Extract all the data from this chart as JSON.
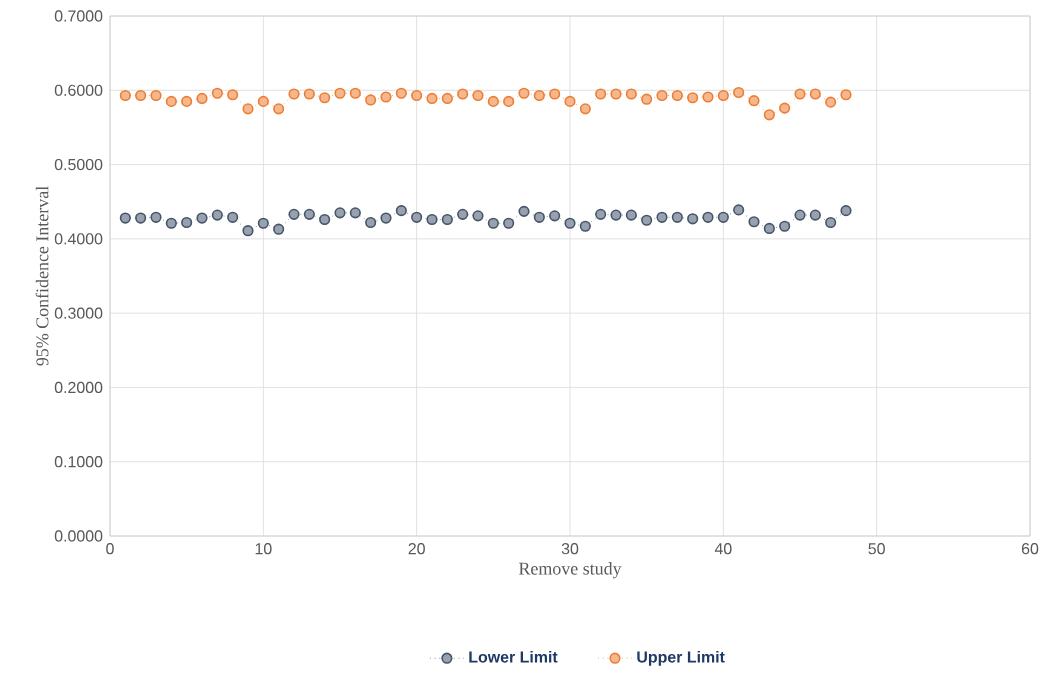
{
  "chart_data": {
    "type": "line",
    "xlabel": "Remove study",
    "ylabel": "95% Confidence Interval",
    "x": [
      1,
      2,
      3,
      4,
      5,
      6,
      7,
      8,
      9,
      10,
      11,
      12,
      13,
      14,
      15,
      16,
      17,
      18,
      19,
      20,
      21,
      22,
      23,
      24,
      25,
      26,
      27,
      28,
      29,
      30,
      31,
      32,
      33,
      34,
      35,
      36,
      37,
      38,
      39,
      40,
      41,
      42,
      43,
      44,
      45,
      46,
      47,
      48
    ],
    "series": [
      {
        "name": "Lower Limit",
        "color": "#44546a",
        "values": [
          0.428,
          0.428,
          0.429,
          0.421,
          0.422,
          0.428,
          0.432,
          0.429,
          0.411,
          0.421,
          0.413,
          0.433,
          0.433,
          0.426,
          0.435,
          0.435,
          0.422,
          0.428,
          0.438,
          0.429,
          0.426,
          0.426,
          0.433,
          0.431,
          0.421,
          0.421,
          0.437,
          0.429,
          0.431,
          0.421,
          0.417,
          0.433,
          0.432,
          0.432,
          0.425,
          0.429,
          0.429,
          0.427,
          0.429,
          0.429,
          0.439,
          0.423,
          0.414,
          0.417,
          0.432,
          0.432,
          0.422,
          0.438
        ]
      },
      {
        "name": "Upper Limit",
        "color": "#ed7d31",
        "values": [
          0.593,
          0.593,
          0.593,
          0.585,
          0.585,
          0.589,
          0.596,
          0.594,
          0.575,
          0.585,
          0.575,
          0.595,
          0.595,
          0.59,
          0.596,
          0.596,
          0.587,
          0.591,
          0.596,
          0.593,
          0.589,
          0.589,
          0.595,
          0.593,
          0.585,
          0.585,
          0.596,
          0.593,
          0.595,
          0.585,
          0.575,
          0.595,
          0.595,
          0.595,
          0.588,
          0.593,
          0.593,
          0.59,
          0.591,
          0.593,
          0.597,
          0.586,
          0.567,
          0.576,
          0.595,
          0.595,
          0.584,
          0.594
        ]
      }
    ],
    "xlim": [
      0,
      60
    ],
    "xticks": [
      0,
      10,
      20,
      30,
      40,
      50,
      60
    ],
    "ylim": [
      0,
      0.7
    ],
    "yticks": [
      {
        "value": 0,
        "label": "0.0000"
      },
      {
        "value": 0.1,
        "label": "0.1000"
      },
      {
        "value": 0.2,
        "label": "0.2000"
      },
      {
        "value": 0.3,
        "label": "0.3000"
      },
      {
        "value": 0.4,
        "label": "0.4000"
      },
      {
        "value": 0.5,
        "label": "0.5000"
      },
      {
        "value": 0.6,
        "label": "0.6000"
      },
      {
        "value": 0.7,
        "label": "0.7000"
      }
    ],
    "grid": true,
    "legend": "bottom",
    "marker": "circle",
    "line_style": "dotted"
  }
}
